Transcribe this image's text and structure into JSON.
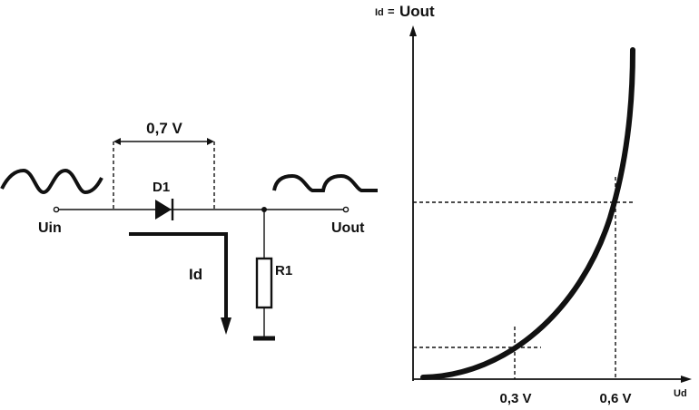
{
  "circuit": {
    "drop_label": "0,7 V",
    "diode_label": "D1",
    "input_label": "Uin",
    "output_label": "Uout",
    "current_label": "Id",
    "resistor_label": "R1"
  },
  "graph": {
    "y_axis_prefix": "Id",
    "y_axis_equals": "=",
    "y_axis_main": "Uout",
    "x_axis_label": "Ud",
    "tick_low": "0,3 V",
    "tick_high": "0,6 V"
  }
}
